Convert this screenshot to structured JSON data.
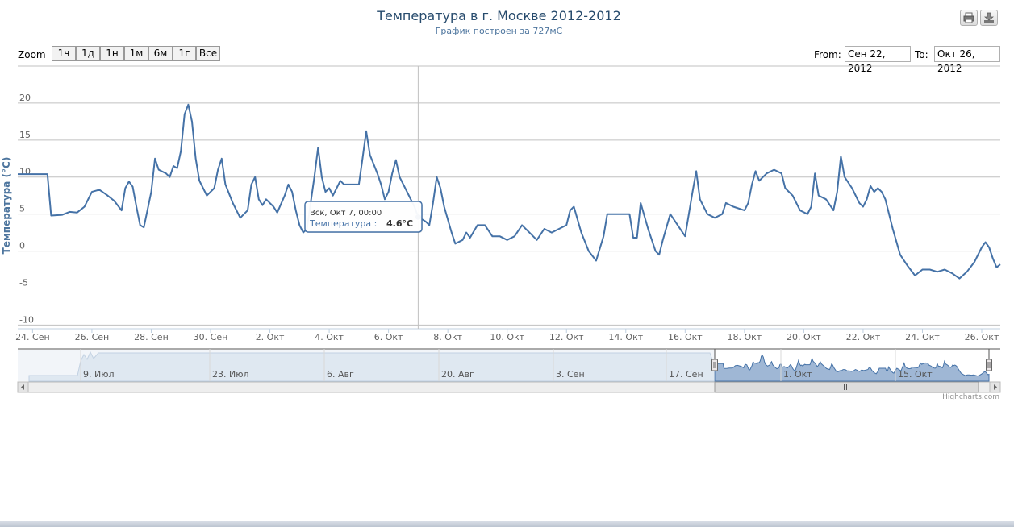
{
  "chart_data": {
    "type": "line",
    "title": "Температура в г. Москве 2012-2012",
    "subtitle": "График построен за 727мС",
    "ylabel": "Температура (°C)",
    "ylim": [
      -10,
      20
    ],
    "yticks": [
      -10,
      -5,
      0,
      5,
      10,
      15,
      20
    ],
    "xlim": [
      "2012-09-23T12:00",
      "2012-10-26T15:00"
    ],
    "xticks": [
      {
        "x": "2012-09-24",
        "label": "24. Сен"
      },
      {
        "x": "2012-09-26",
        "label": "26. Сен"
      },
      {
        "x": "2012-09-28",
        "label": "28. Сен"
      },
      {
        "x": "2012-09-30",
        "label": "30. Сен"
      },
      {
        "x": "2012-10-02",
        "label": "2. Окт"
      },
      {
        "x": "2012-10-04",
        "label": "4. Окт"
      },
      {
        "x": "2012-10-06",
        "label": "6. Окт"
      },
      {
        "x": "2012-10-08",
        "label": "8. Окт"
      },
      {
        "x": "2012-10-10",
        "label": "10. Окт"
      },
      {
        "x": "2012-10-12",
        "label": "12. Окт"
      },
      {
        "x": "2012-10-14",
        "label": "14. Окт"
      },
      {
        "x": "2012-10-16",
        "label": "16. Окт"
      },
      {
        "x": "2012-10-18",
        "label": "18. Окт"
      },
      {
        "x": "2012-10-20",
        "label": "20. Окт"
      },
      {
        "x": "2012-10-22",
        "label": "22. Окт"
      },
      {
        "x": "2012-10-24",
        "label": "24. Окт"
      },
      {
        "x": "2012-10-26",
        "label": "26. Окт"
      }
    ],
    "grid": true,
    "legend": "none",
    "series": [
      {
        "color": "#4572a7",
        "points": [
          [
            "2012-09-23T12:00",
            10.4
          ],
          [
            "2012-09-24T00:00",
            10.4
          ],
          [
            "2012-09-24T06:00",
            10.4
          ],
          [
            "2012-09-24T12:00",
            10.4
          ],
          [
            "2012-09-24T15:00",
            4.8
          ],
          [
            "2012-09-25T00:00",
            4.9
          ],
          [
            "2012-09-25T06:00",
            5.3
          ],
          [
            "2012-09-25T12:00",
            5.2
          ],
          [
            "2012-09-25T18:00",
            6.0
          ],
          [
            "2012-09-26T00:00",
            8.0
          ],
          [
            "2012-09-26T06:00",
            8.3
          ],
          [
            "2012-09-26T12:00",
            7.6
          ],
          [
            "2012-09-26T18:00",
            6.8
          ],
          [
            "2012-09-27T00:00",
            5.5
          ],
          [
            "2012-09-27T03:00",
            8.5
          ],
          [
            "2012-09-27T06:00",
            9.4
          ],
          [
            "2012-09-27T09:00",
            8.7
          ],
          [
            "2012-09-27T12:00",
            6.0
          ],
          [
            "2012-09-27T15:00",
            3.5
          ],
          [
            "2012-09-27T18:00",
            3.2
          ],
          [
            "2012-09-28T00:00",
            8.0
          ],
          [
            "2012-09-28T03:00",
            12.5
          ],
          [
            "2012-09-28T06:00",
            11.0
          ],
          [
            "2012-09-28T12:00",
            10.5
          ],
          [
            "2012-09-28T15:00",
            10.0
          ],
          [
            "2012-09-28T18:00",
            11.5
          ],
          [
            "2012-09-28T21:00",
            11.2
          ],
          [
            "2012-09-29T00:00",
            13.5
          ],
          [
            "2012-09-29T03:00",
            18.5
          ],
          [
            "2012-09-29T06:00",
            19.8
          ],
          [
            "2012-09-29T09:00",
            17.5
          ],
          [
            "2012-09-29T12:00",
            12.5
          ],
          [
            "2012-09-29T15:00",
            9.5
          ],
          [
            "2012-09-29T21:00",
            7.5
          ],
          [
            "2012-09-30T03:00",
            8.5
          ],
          [
            "2012-09-30T06:00",
            11.0
          ],
          [
            "2012-09-30T09:00",
            12.5
          ],
          [
            "2012-09-30T12:00",
            9.0
          ],
          [
            "2012-09-30T18:00",
            6.5
          ],
          [
            "2012-10-01T00:00",
            4.5
          ],
          [
            "2012-10-01T06:00",
            5.5
          ],
          [
            "2012-10-01T09:00",
            9.0
          ],
          [
            "2012-10-01T12:00",
            10.0
          ],
          [
            "2012-10-01T15:00",
            7.0
          ],
          [
            "2012-10-01T18:00",
            6.2
          ],
          [
            "2012-10-01T21:00",
            7.0
          ],
          [
            "2012-10-02T03:00",
            6.0
          ],
          [
            "2012-10-02T06:00",
            5.2
          ],
          [
            "2012-10-02T12:00",
            7.5
          ],
          [
            "2012-10-02T15:00",
            9.0
          ],
          [
            "2012-10-02T18:00",
            8.0
          ],
          [
            "2012-10-02T21:00",
            5.5
          ],
          [
            "2012-10-03T00:00",
            3.5
          ],
          [
            "2012-10-03T03:00",
            2.5
          ],
          [
            "2012-10-03T06:00",
            3.0
          ],
          [
            "2012-10-03T12:00",
            10.0
          ],
          [
            "2012-10-03T15:00",
            14.0
          ],
          [
            "2012-10-03T18:00",
            10.0
          ],
          [
            "2012-10-03T21:00",
            8.0
          ],
          [
            "2012-10-04T00:00",
            8.5
          ],
          [
            "2012-10-04T03:00",
            7.5
          ],
          [
            "2012-10-04T06:00",
            8.5
          ],
          [
            "2012-10-04T09:00",
            9.5
          ],
          [
            "2012-10-04T12:00",
            9.0
          ],
          [
            "2012-10-04T18:00",
            9.0
          ],
          [
            "2012-10-05T00:00",
            9.0
          ],
          [
            "2012-10-05T03:00",
            12.5
          ],
          [
            "2012-10-05T06:00",
            16.2
          ],
          [
            "2012-10-05T09:00",
            13.0
          ],
          [
            "2012-10-05T15:00",
            10.5
          ],
          [
            "2012-10-05T18:00",
            9.0
          ],
          [
            "2012-10-05T21:00",
            7.0
          ],
          [
            "2012-10-06T00:00",
            8.0
          ],
          [
            "2012-10-06T03:00",
            10.5
          ],
          [
            "2012-10-06T06:00",
            12.3
          ],
          [
            "2012-10-06T09:00",
            10.0
          ],
          [
            "2012-10-06T15:00",
            8.0
          ],
          [
            "2012-10-06T21:00",
            6.0
          ],
          [
            "2012-10-07T00:00",
            4.6
          ],
          [
            "2012-10-07T06:00",
            4.0
          ],
          [
            "2012-10-07T09:00",
            3.5
          ],
          [
            "2012-10-07T12:00",
            6.5
          ],
          [
            "2012-10-07T15:00",
            10.0
          ],
          [
            "2012-10-07T18:00",
            8.5
          ],
          [
            "2012-10-07T21:00",
            6.0
          ],
          [
            "2012-10-08T03:00",
            2.5
          ],
          [
            "2012-10-08T06:00",
            1.0
          ],
          [
            "2012-10-08T12:00",
            1.5
          ],
          [
            "2012-10-08T15:00",
            2.5
          ],
          [
            "2012-10-08T18:00",
            1.8
          ],
          [
            "2012-10-09T00:00",
            3.5
          ],
          [
            "2012-10-09T06:00",
            3.5
          ],
          [
            "2012-10-09T12:00",
            2.0
          ],
          [
            "2012-10-09T18:00",
            2.0
          ],
          [
            "2012-10-10T00:00",
            1.5
          ],
          [
            "2012-10-10T06:00",
            2.0
          ],
          [
            "2012-10-10T12:00",
            3.5
          ],
          [
            "2012-10-10T18:00",
            2.5
          ],
          [
            "2012-10-11T00:00",
            1.5
          ],
          [
            "2012-10-11T06:00",
            3.0
          ],
          [
            "2012-10-11T12:00",
            2.5
          ],
          [
            "2012-10-11T18:00",
            3.0
          ],
          [
            "2012-10-12T00:00",
            3.5
          ],
          [
            "2012-10-12T03:00",
            5.5
          ],
          [
            "2012-10-12T06:00",
            6.0
          ],
          [
            "2012-10-12T12:00",
            2.5
          ],
          [
            "2012-10-12T18:00",
            0.0
          ],
          [
            "2012-10-13T00:00",
            -1.3
          ],
          [
            "2012-10-13T06:00",
            2.0
          ],
          [
            "2012-10-13T09:00",
            5.0
          ],
          [
            "2012-10-13T15:00",
            5.0
          ],
          [
            "2012-10-13T21:00",
            5.0
          ],
          [
            "2012-10-14T03:00",
            5.0
          ],
          [
            "2012-10-14T06:00",
            1.8
          ],
          [
            "2012-10-14T09:00",
            1.8
          ],
          [
            "2012-10-14T12:00",
            6.5
          ],
          [
            "2012-10-14T18:00",
            3.0
          ],
          [
            "2012-10-15T00:00",
            0.0
          ],
          [
            "2012-10-15T03:00",
            -0.5
          ],
          [
            "2012-10-15T06:00",
            1.5
          ],
          [
            "2012-10-15T12:00",
            5.0
          ],
          [
            "2012-10-15T18:00",
            3.5
          ],
          [
            "2012-10-16T00:00",
            2.0
          ],
          [
            "2012-10-16T03:00",
            5.0
          ],
          [
            "2012-10-16T06:00",
            8.0
          ],
          [
            "2012-10-16T09:00",
            10.8
          ],
          [
            "2012-10-16T12:00",
            7.0
          ],
          [
            "2012-10-16T18:00",
            5.0
          ],
          [
            "2012-10-17T00:00",
            4.5
          ],
          [
            "2012-10-17T06:00",
            5.0
          ],
          [
            "2012-10-17T09:00",
            6.5
          ],
          [
            "2012-10-17T15:00",
            6.0
          ],
          [
            "2012-10-18T00:00",
            5.5
          ],
          [
            "2012-10-18T03:00",
            6.5
          ],
          [
            "2012-10-18T06:00",
            9.0
          ],
          [
            "2012-10-18T09:00",
            10.8
          ],
          [
            "2012-10-18T12:00",
            9.5
          ],
          [
            "2012-10-18T18:00",
            10.5
          ],
          [
            "2012-10-19T00:00",
            11.0
          ],
          [
            "2012-10-19T06:00",
            10.5
          ],
          [
            "2012-10-19T09:00",
            8.5
          ],
          [
            "2012-10-19T15:00",
            7.5
          ],
          [
            "2012-10-19T21:00",
            5.5
          ],
          [
            "2012-10-20T03:00",
            5.0
          ],
          [
            "2012-10-20T06:00",
            6.0
          ],
          [
            "2012-10-20T09:00",
            10.5
          ],
          [
            "2012-10-20T12:00",
            7.5
          ],
          [
            "2012-10-20T18:00",
            7.0
          ],
          [
            "2012-10-21T00:00",
            5.5
          ],
          [
            "2012-10-21T03:00",
            8.0
          ],
          [
            "2012-10-21T06:00",
            12.8
          ],
          [
            "2012-10-21T09:00",
            10.0
          ],
          [
            "2012-10-21T15:00",
            8.5
          ],
          [
            "2012-10-21T21:00",
            6.5
          ],
          [
            "2012-10-22T00:00",
            6.0
          ],
          [
            "2012-10-22T03:00",
            7.0
          ],
          [
            "2012-10-22T06:00",
            8.8
          ],
          [
            "2012-10-22T09:00",
            8.0
          ],
          [
            "2012-10-22T12:00",
            8.5
          ],
          [
            "2012-10-22T15:00",
            8.0
          ],
          [
            "2012-10-22T18:00",
            7.0
          ],
          [
            "2012-10-23T00:00",
            3.0
          ],
          [
            "2012-10-23T06:00",
            -0.5
          ],
          [
            "2012-10-23T12:00",
            -2.0
          ],
          [
            "2012-10-23T18:00",
            -3.3
          ],
          [
            "2012-10-24T00:00",
            -2.5
          ],
          [
            "2012-10-24T06:00",
            -2.5
          ],
          [
            "2012-10-24T12:00",
            -2.8
          ],
          [
            "2012-10-24T18:00",
            -2.5
          ],
          [
            "2012-10-25T00:00",
            -3.0
          ],
          [
            "2012-10-25T06:00",
            -3.7
          ],
          [
            "2012-10-25T12:00",
            -2.8
          ],
          [
            "2012-10-25T18:00",
            -1.5
          ],
          [
            "2012-10-26T00:00",
            0.5
          ],
          [
            "2012-10-26T03:00",
            1.2
          ],
          [
            "2012-10-26T06:00",
            0.5
          ],
          [
            "2012-10-26T09:00",
            -1.0
          ],
          [
            "2012-10-26T12:00",
            -2.2
          ],
          [
            "2012-10-26T15:00",
            -1.8
          ]
        ]
      }
    ],
    "tooltip": {
      "x": "2012-10-07T00:00",
      "y": 4.6,
      "header": "Вск, Окт 7, 00:00",
      "series_label": "Температура :",
      "value": "4.6°C"
    },
    "navigator": {
      "labels": [
        "9. Июл",
        "23. Июл",
        "6. Авг",
        "20. Авг",
        "3. Сен",
        "17. Сен",
        "1. Окт",
        "15. Окт"
      ]
    }
  },
  "range_selector": {
    "zoom_label": "Zoom",
    "buttons": [
      "1ч",
      "1д",
      "1н",
      "1м",
      "6м",
      "1г",
      "Все"
    ],
    "from_label": "From:",
    "from_value": "Сен 22, 2012",
    "to_label": "To:",
    "to_value": "Окт 26, 2012"
  },
  "toolbar": {
    "print_icon": "printer-icon",
    "export_icon": "download-icon"
  },
  "credits": "Highcharts.com"
}
